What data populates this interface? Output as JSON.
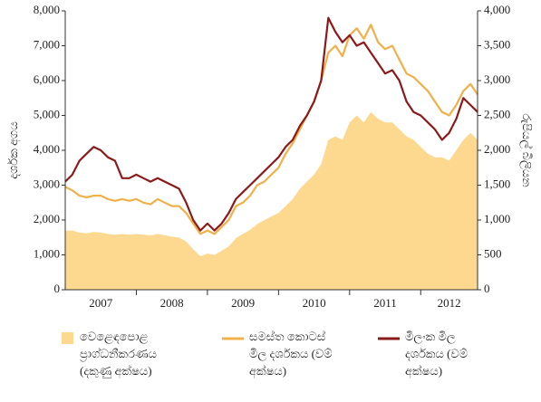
{
  "chart_data": {
    "type": "line",
    "y_label": "දර්ශක අගය",
    "y2_label": "රුපියල් බිලියන",
    "x": [
      2007.0,
      2007.1,
      2007.2,
      2007.3,
      2007.4,
      2007.5,
      2007.6,
      2007.7,
      2007.8,
      2007.9,
      2008.0,
      2008.1,
      2008.2,
      2008.3,
      2008.4,
      2008.5,
      2008.6,
      2008.7,
      2008.8,
      2008.9,
      2009.0,
      2009.1,
      2009.2,
      2009.3,
      2009.4,
      2009.5,
      2009.6,
      2009.7,
      2009.8,
      2009.9,
      2010.0,
      2010.1,
      2010.2,
      2010.3,
      2010.4,
      2010.5,
      2010.6,
      2010.7,
      2010.8,
      2010.9,
      2011.0,
      2011.1,
      2011.2,
      2011.3,
      2011.4,
      2011.5,
      2011.6,
      2011.7,
      2011.8,
      2011.9,
      2012.0,
      2012.1,
      2012.2,
      2012.3,
      2012.4,
      2012.5,
      2012.6,
      2012.7,
      2012.8
    ],
    "xlim": [
      2007,
      2012.8
    ],
    "xticks": [
      2008,
      2009,
      2010,
      2011,
      2012
    ],
    "year_labels": [
      2007,
      2008,
      2009,
      2010,
      2011,
      2012
    ],
    "ylim": [
      0,
      8000
    ],
    "yticks": [
      0,
      {
        "value": 1000,
        "label": "1,000"
      },
      {
        "value": 2000,
        "label": "2,000"
      },
      {
        "value": 3000,
        "label": "3,000"
      },
      {
        "value": 4000,
        "label": "4,000"
      },
      {
        "value": 5000,
        "label": "5,000"
      },
      {
        "value": 6000,
        "label": "6,000"
      },
      {
        "value": 7000,
        "label": "7,000"
      },
      {
        "value": 8000,
        "label": "8,000"
      }
    ],
    "y2lim": [
      0,
      4000
    ],
    "y2ticks": [
      0,
      500,
      {
        "value": 1000,
        "label": "1,000"
      },
      {
        "value": 1500,
        "label": "1,500"
      },
      {
        "value": 2000,
        "label": "2,000"
      },
      {
        "value": 2500,
        "label": "2,500"
      },
      {
        "value": 3000,
        "label": "3,000"
      },
      {
        "value": 3500,
        "label": "3,500"
      },
      {
        "value": 4000,
        "label": "4,000"
      }
    ],
    "series": [
      {
        "name": "වෙළෙඳපොළ ප්‍රාග්ධනීකරණය (දකුණු අක්ෂය)",
        "kind": "area",
        "axis": "y2",
        "color": "#fcd98f",
        "values": [
          850,
          850,
          820,
          810,
          830,
          820,
          800,
          790,
          800,
          790,
          800,
          790,
          780,
          800,
          780,
          760,
          750,
          690,
          580,
          480,
          520,
          500,
          560,
          620,
          740,
          800,
          860,
          940,
          1000,
          1050,
          1100,
          1200,
          1300,
          1450,
          1550,
          1650,
          1800,
          2150,
          2200,
          2150,
          2400,
          2500,
          2400,
          2550,
          2450,
          2400,
          2400,
          2300,
          2200,
          2150,
          2050,
          1950,
          1900,
          1900,
          1850,
          2000,
          2150,
          2250,
          2150
        ]
      },
      {
        "name": "සමස්ත කොටස් මිල දර්ශකය (වම් අක්ෂය)",
        "kind": "line",
        "color": "#f0b04a",
        "values": [
          2950,
          2850,
          2700,
          2650,
          2700,
          2700,
          2600,
          2550,
          2600,
          2550,
          2600,
          2500,
          2450,
          2600,
          2500,
          2400,
          2400,
          2200,
          1900,
          1600,
          1700,
          1600,
          1800,
          2000,
          2400,
          2500,
          2700,
          3000,
          3100,
          3300,
          3500,
          3900,
          4200,
          4600,
          5000,
          5400,
          6000,
          6800,
          7000,
          6700,
          7300,
          7500,
          7200,
          7600,
          7100,
          6900,
          7000,
          6600,
          6200,
          6100,
          5900,
          5700,
          5400,
          5100,
          5000,
          5300,
          5700,
          5900,
          5600
        ]
      },
      {
        "name": "මිලංක මිල දර්ශකය (වම් අක්ෂය)",
        "kind": "line",
        "color": "#8b1a1a",
        "values": [
          3100,
          3300,
          3700,
          3900,
          4100,
          4000,
          3800,
          3700,
          3200,
          3200,
          3300,
          3200,
          3100,
          3200,
          3100,
          3000,
          2900,
          2500,
          2000,
          1700,
          1900,
          1700,
          1900,
          2200,
          2600,
          2800,
          3000,
          3200,
          3400,
          3600,
          3800,
          4100,
          4300,
          4700,
          5000,
          5400,
          6000,
          7800,
          7400,
          7100,
          7300,
          7000,
          7100,
          6800,
          6500,
          6200,
          6300,
          6000,
          5400,
          5100,
          5000,
          4800,
          4600,
          4300,
          4500,
          4900,
          5500,
          5300,
          5100
        ]
      }
    ]
  }
}
